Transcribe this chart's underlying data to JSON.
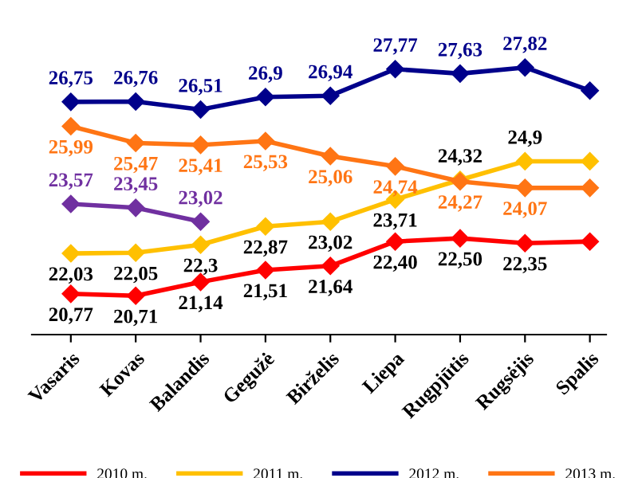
{
  "chart_data": {
    "type": "line",
    "categories": [
      "Vasaris",
      "Kovas",
      "Balandis",
      "Gegužė",
      "Birželis",
      "Liepa",
      "Rugpjūtis",
      "Rugsėjis",
      "Spalis"
    ],
    "series": [
      {
        "name": "2010 m.",
        "color": "#ff0000",
        "values": [
          20.77,
          20.71,
          21.14,
          21.51,
          21.64,
          22.4,
          22.5,
          22.35,
          22.4
        ],
        "value_labels": [
          "20,77",
          "20,71",
          "21,14",
          "21,51",
          "21,64",
          "22,40",
          "22,50",
          "22,35",
          null
        ]
      },
      {
        "name": "2011 m.",
        "color": "#ffc000",
        "values": [
          22.03,
          22.05,
          22.3,
          22.87,
          23.02,
          23.71,
          24.32,
          24.9,
          24.9
        ],
        "value_labels": [
          "22,03",
          "22,05",
          "22,3",
          "22,87",
          "23,02",
          "23,71",
          "24,32",
          "24,9",
          null
        ]
      },
      {
        "name": "2012 m.",
        "color": "#00008b",
        "values": [
          26.75,
          26.76,
          26.51,
          26.9,
          26.94,
          27.77,
          27.63,
          27.82,
          27.1
        ],
        "value_labels": [
          "26,75",
          "26,76",
          "26,51",
          "26,9",
          "26,94",
          "27,77",
          "27,63",
          "27,82",
          null
        ]
      },
      {
        "name": "2013 m.",
        "color": "#ff7514",
        "values": [
          25.99,
          25.47,
          25.41,
          25.53,
          25.06,
          24.74,
          24.27,
          24.07,
          24.07
        ],
        "value_labels": [
          "25,99",
          "25,47",
          "25,41",
          "25,53",
          "25,06",
          "24,74",
          "24,27",
          "24,07",
          null
        ]
      },
      {
        "color": "#7030a0",
        "values": [
          23.57,
          23.45,
          23.02,
          null,
          null,
          null,
          null,
          null,
          null
        ],
        "value_labels": [
          "23,57",
          "23,45",
          "23,02",
          null,
          null,
          null,
          null,
          null,
          null
        ]
      }
    ],
    "marker": "diamond",
    "line_style": "solid",
    "legend": "bottom"
  }
}
